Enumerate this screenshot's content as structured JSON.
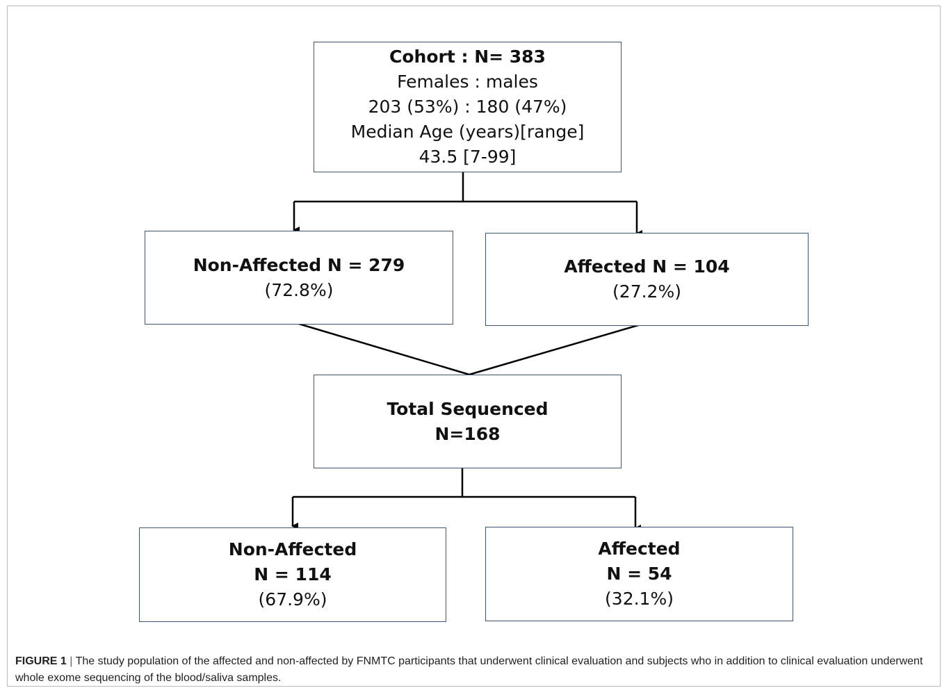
{
  "flowchart": {
    "cohort": {
      "title": "Cohort :  N= 383",
      "line2": "Females : males",
      "line3": "203 (53%) : 180 (47%)",
      "line4": "Median Age (years)[range]",
      "line5": "43.5 [7-99]"
    },
    "non_affected_all": {
      "title": "Non-Affected  N = 279",
      "percent": "(72.8%)"
    },
    "affected_all": {
      "title": "Affected  N = 104",
      "percent": "(27.2%)"
    },
    "total_sequenced": {
      "title": "Total Sequenced",
      "count": "N=168"
    },
    "non_affected_seq": {
      "title": "Non-Affected",
      "count": "N = 114",
      "percent": "(67.9%)"
    },
    "affected_seq": {
      "title": "Affected",
      "count": "N = 54",
      "percent": "(32.1%)"
    }
  },
  "caption": {
    "label": "FIGURE 1",
    "separator": "|",
    "text": "The study population of the affected and non-affected by FNMTC participants that underwent clinical evaluation and subjects who in addition to clinical evaluation underwent whole exome sequencing of the blood/saliva samples."
  },
  "colors": {
    "box_border": "#3f5672",
    "connector": "#000000",
    "frame_border": "#b8b8b8"
  }
}
